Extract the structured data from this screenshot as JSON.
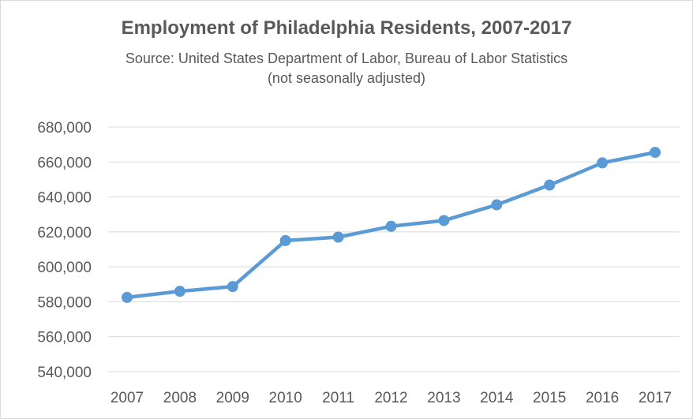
{
  "chart_data": {
    "type": "line",
    "title": "Employment of Philadelphia Residents, 2007-2017",
    "subtitle_lines": [
      "Source: United States Department of Labor, Bureau of Labor Statistics",
      "(not seasonally adjusted)"
    ],
    "x": [
      "2007",
      "2008",
      "2009",
      "2010",
      "2011",
      "2012",
      "2013",
      "2014",
      "2015",
      "2016",
      "2017"
    ],
    "series": [
      {
        "values": [
          582500,
          586000,
          588700,
          615000,
          617000,
          623200,
          626500,
          635500,
          646800,
          659500,
          665500
        ],
        "color": "#5b9bd5"
      }
    ],
    "ylim": [
      540000,
      680000
    ],
    "yticks": [
      "540,000",
      "560,000",
      "580,000",
      "600,000",
      "620,000",
      "640,000",
      "660,000",
      "680,000"
    ],
    "ytick_values": [
      540000,
      560000,
      580000,
      600000,
      620000,
      640000,
      660000,
      680000
    ],
    "grid": true,
    "legend": "none",
    "gridline_color": "#d9d9d9"
  }
}
